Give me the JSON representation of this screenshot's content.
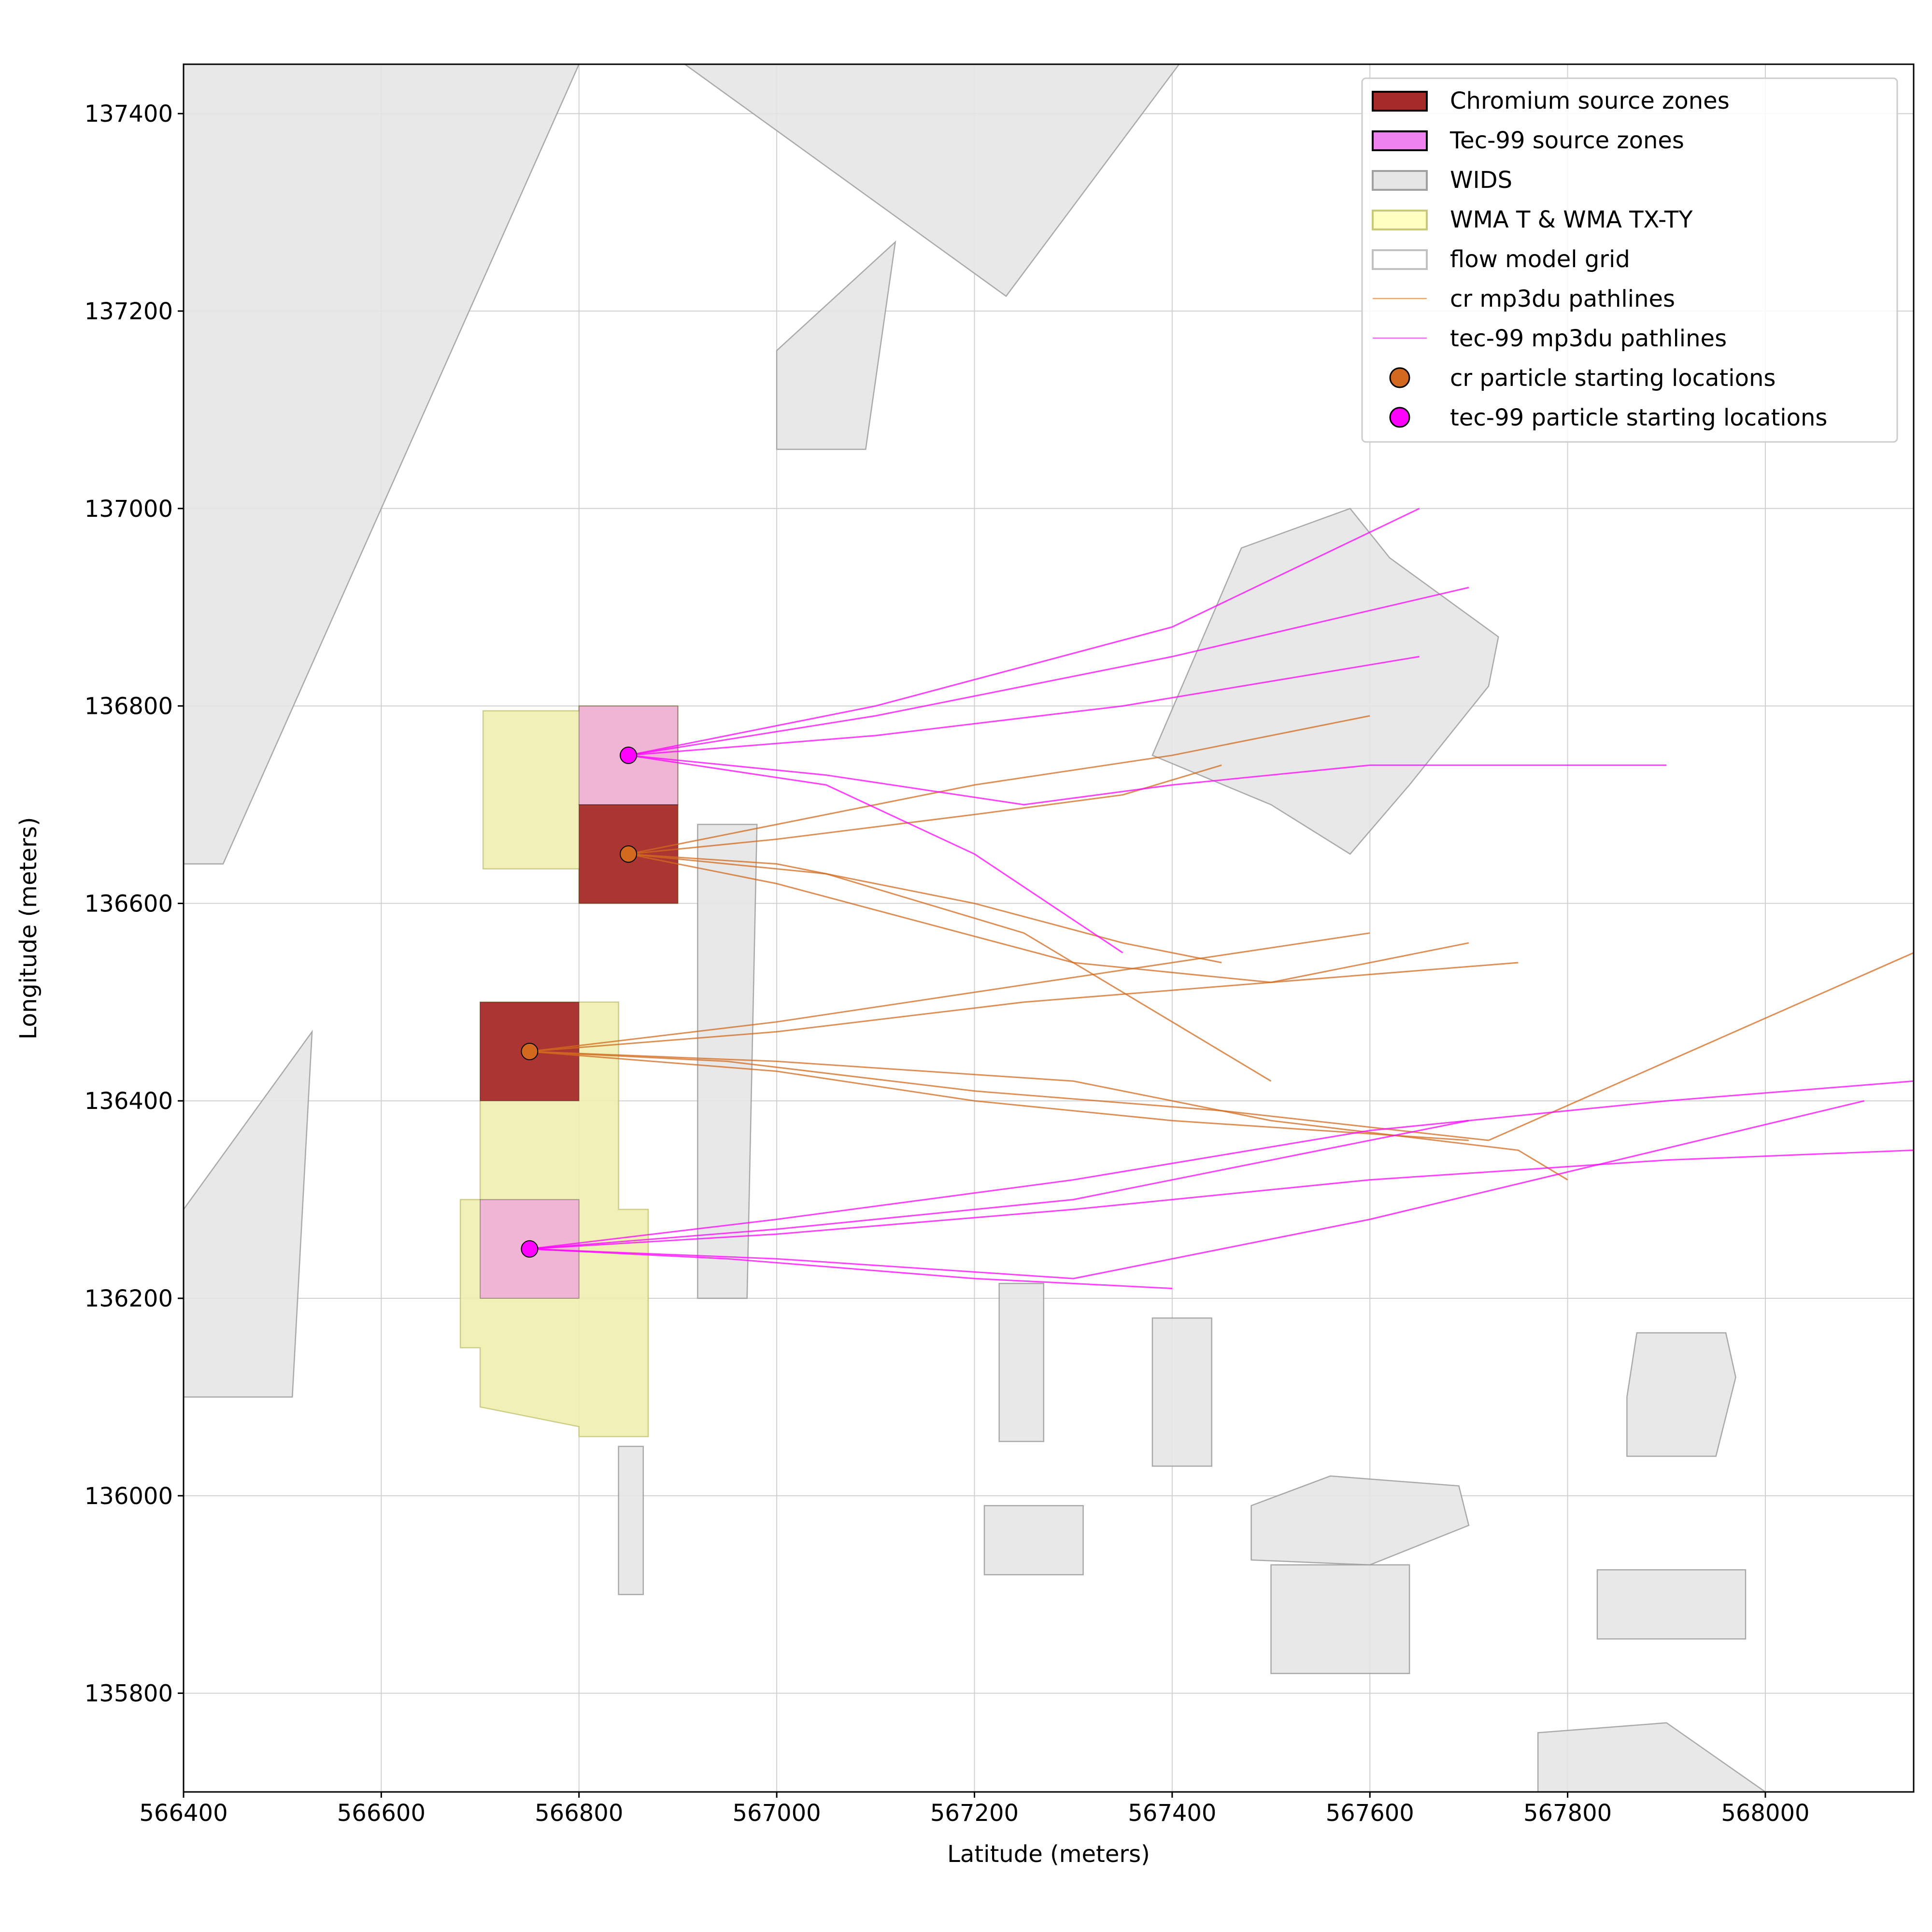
{
  "chart_data": {
    "type": "map",
    "x_label": "Latitude (meters)",
    "y_label": "Longitude (meters)",
    "xlim": [
      566400,
      568150
    ],
    "ylim": [
      135700,
      137450
    ],
    "xticks": [
      566400,
      566600,
      566800,
      567000,
      567200,
      567400,
      567600,
      567800,
      568000
    ],
    "yticks": [
      135800,
      136000,
      136200,
      136400,
      136600,
      136800,
      137000,
      137200,
      137400
    ],
    "grid": true,
    "legend_position": "upper right",
    "features": [
      {
        "name": "WIDS",
        "fill": "#e6e6e6",
        "stroke": "#a0a0a0",
        "polygons": [
          {
            "x": [
              566400,
              566440,
              566800,
              566400
            ],
            "y": [
              136640,
              136640,
              137450,
              137450
            ]
          },
          {
            "x": [
              566907,
              567407,
              567232
            ],
            "y": [
              137450,
              137450,
              137215
            ]
          },
          {
            "x": [
              567380,
              567470,
              567580,
              567620,
              567730,
              567720,
              567640,
              567580,
              567500
            ],
            "y": [
              136750,
              136960,
              137000,
              136950,
              136870,
              136820,
              136720,
              136650,
              136700
            ]
          },
          {
            "x": [
              566400,
              566510,
              566530,
              566400
            ],
            "y": [
              136100,
              136100,
              136470,
              136290
            ]
          },
          {
            "x": [
              566920,
              566970,
              566980,
              566920
            ],
            "y": [
              136200,
              136200,
              136680,
              136680
            ]
          },
          {
            "x": [
              567500,
              567640,
              567640,
              567500
            ],
            "y": [
              135820,
              135820,
              135930,
              135930
            ]
          },
          {
            "x": [
              567380,
              567440,
              567440,
              567380
            ],
            "y": [
              136030,
              136030,
              136180,
              136180
            ]
          },
          {
            "x": [
              567830,
              567980,
              567980,
              567830
            ],
            "y": [
              135855,
              135855,
              135925,
              135925
            ]
          },
          {
            "x": [
              567860,
              567950,
              567970,
              567960,
              567870,
              567860
            ],
            "y": [
              136040,
              136040,
              136120,
              136165,
              136165,
              136100
            ]
          },
          {
            "x": [
              567225,
              567270,
              567270,
              567225
            ],
            "y": [
              136055,
              136055,
              136215,
              136215
            ]
          },
          {
            "x": [
              567210,
              567310,
              567310,
              567210
            ],
            "y": [
              135920,
              135920,
              135990,
              135990
            ]
          },
          {
            "x": [
              567000,
              567120,
              567090,
              567000
            ],
            "y": [
              137160,
              137270,
              137060,
              137060
            ]
          },
          {
            "x": [
              566840,
              566865,
              566865,
              566840
            ],
            "y": [
              135900,
              135900,
              136050,
              136050
            ]
          },
          {
            "x": [
              567480,
              567600,
              567700,
              567690,
              567560,
              567480
            ],
            "y": [
              135935,
              135930,
              135970,
              136010,
              136020,
              135990
            ]
          },
          {
            "x": [
              567770,
              567900,
              568000,
              567900,
              567770
            ],
            "y": [
              135700,
              135700,
              135700,
              135770,
              135760
            ]
          }
        ]
      },
      {
        "name": "WMA T & WMA TX-TY",
        "fill": "#f0f0b0",
        "stroke": "#c8c878",
        "polygons": [
          {
            "x": [
              566703,
              566800,
              566800,
              566900,
              566900,
              566800,
              566800,
              566703
            ],
            "y": [
              136635,
              136635,
              136600,
              136600,
              136800,
              136800,
              136795,
              136795
            ]
          },
          {
            "x": [
              566700,
              566840,
              566840,
              566870,
              566870,
              566800,
              566800,
              566700,
              566700,
              566680,
              566680,
              566700
            ],
            "y": [
              136500,
              136500,
              136290,
              136290,
              136060,
              136060,
              136070,
              136090,
              136150,
              136150,
              136300,
              136300
            ]
          }
        ]
      }
    ],
    "source_zones": [
      {
        "name": "Chromium source zones",
        "color": "#a52a2a",
        "opacity": 0.95,
        "rects": [
          {
            "x": [
              566800,
              566900
            ],
            "y": [
              136600,
              136700
            ]
          },
          {
            "x": [
              566700,
              566800
            ],
            "y": [
              136400,
              136500
            ]
          }
        ]
      },
      {
        "name": "Tec-99 source zones",
        "color": "#ee82ee",
        "opacity": 0.55,
        "rects": [
          {
            "x": [
              566800,
              566900
            ],
            "y": [
              136700,
              136800
            ]
          },
          {
            "x": [
              566700,
              566800
            ],
            "y": [
              136200,
              136300
            ]
          }
        ]
      }
    ],
    "pathlines": [
      {
        "name": "cr mp3du pathlines",
        "color": "#d2691e",
        "lines": [
          {
            "x": [
              566850,
              567000,
              567200,
              567400,
              567600
            ],
            "y": [
              136650,
              136680,
              136720,
              136750,
              136790
            ]
          },
          {
            "x": [
              566850,
              567000,
              567200,
              567350,
              567450
            ],
            "y": [
              136650,
              136665,
              136690,
              136710,
              136740
            ]
          },
          {
            "x": [
              566850,
              567000,
              567200,
              567350,
              567450
            ],
            "y": [
              136650,
              136640,
              136600,
              136560,
              136540
            ]
          },
          {
            "x": [
              566850,
              567000,
              567150,
              567300,
              567500,
              567700
            ],
            "y": [
              136650,
              136620,
              136580,
              136540,
              136520,
              136560
            ]
          },
          {
            "x": [
              566850,
              567050,
              567250,
              567400,
              567500
            ],
            "y": [
              136650,
              136630,
              136570,
              136480,
              136420
            ]
          },
          {
            "x": [
              566750,
              567000,
              567200,
              567400,
              567600
            ],
            "y": [
              136450,
              136480,
              136510,
              136540,
              136570
            ]
          },
          {
            "x": [
              566750,
              567000,
              567250,
              567500,
              567750
            ],
            "y": [
              136450,
              136470,
              136500,
              136520,
              136540
            ]
          },
          {
            "x": [
              566750,
              567000,
              567200,
              567400,
              567700
            ],
            "y": [
              136450,
              136430,
              136400,
              136380,
              136360
            ]
          },
          {
            "x": [
              566750,
              567000,
              567300,
              567500,
              567750,
              567800
            ],
            "y": [
              136450,
              136440,
              136420,
              136380,
              136350,
              136320
            ]
          },
          {
            "x": [
              566750,
              566950,
              567200,
              567450,
              567720,
              568150
            ],
            "y": [
              136450,
              136440,
              136410,
              136390,
              136360,
              136550
            ]
          }
        ]
      },
      {
        "name": "tec-99 mp3du pathlines",
        "color": "#ff00ff",
        "lines": [
          {
            "x": [
              566850,
              567100,
              567400,
              567650
            ],
            "y": [
              136750,
              136800,
              136880,
              137000
            ]
          },
          {
            "x": [
              566850,
              567100,
              567400,
              567700
            ],
            "y": [
              136750,
              136790,
              136850,
              136920
            ]
          },
          {
            "x": [
              566850,
              567100,
              567350,
              567650
            ],
            "y": [
              136750,
              136770,
              136800,
              136850
            ]
          },
          {
            "x": [
              566850,
              567050,
              567250,
              567400,
              567600,
              567900
            ],
            "y": [
              136750,
              136730,
              136700,
              136720,
              136740,
              136740
            ]
          },
          {
            "x": [
              566850,
              567050,
              567200,
              567350
            ],
            "y": [
              136750,
              136720,
              136650,
              136550
            ]
          },
          {
            "x": [
              566750,
              567000,
              567300,
              567600,
              567900,
              568150
            ],
            "y": [
              136250,
              136280,
              136320,
              136370,
              136400,
              136420
            ]
          },
          {
            "x": [
              566750,
              567000,
              567300,
              567600,
              567900,
              568150
            ],
            "y": [
              136250,
              136265,
              136290,
              136320,
              136340,
              136350
            ]
          },
          {
            "x": [
              566750,
              567000,
              567300,
              567600,
              568100
            ],
            "y": [
              136250,
              136240,
              136220,
              136280,
              136400
            ]
          },
          {
            "x": [
              566750,
              566950,
              567200,
              567400
            ],
            "y": [
              136250,
              136240,
              136220,
              136210
            ]
          },
          {
            "x": [
              566750,
              567000,
              567300,
              567500,
              567700
            ],
            "y": [
              136250,
              136270,
              136300,
              136340,
              136380
            ]
          }
        ]
      }
    ],
    "series": [
      {
        "name": "cr particle starting locations",
        "color": "#d2691e",
        "x": [
          566850,
          566750
        ],
        "y": [
          136650,
          136450
        ]
      },
      {
        "name": "tec-99 particle starting locations",
        "color": "#ff00ff",
        "x": [
          566850,
          566750
        ],
        "y": [
          136750,
          136250
        ]
      }
    ],
    "legend": [
      {
        "label": "Chromium source zones",
        "kind": "patch",
        "color": "#a52a2a",
        "edge": "#000000"
      },
      {
        "label": "Tec-99 source zones",
        "kind": "patch",
        "color": "#ee82ee",
        "edge": "#000000"
      },
      {
        "label": "WIDS",
        "kind": "patch",
        "color": "#e6e6e6",
        "edge": "#a0a0a0"
      },
      {
        "label": "WMA T & WMA TX-TY",
        "kind": "patch",
        "color": "#ffffc0",
        "edge": "#c8c878"
      },
      {
        "label": "flow model grid",
        "kind": "patch",
        "color": "#ffffff",
        "edge": "#c0c0c0"
      },
      {
        "label": "cr mp3du pathlines",
        "kind": "line",
        "color": "#f4a460"
      },
      {
        "label": "tec-99 mp3du pathlines",
        "kind": "line",
        "color": "#ff66ff"
      },
      {
        "label": "cr particle starting locations",
        "kind": "marker",
        "color": "#d2691e"
      },
      {
        "label": "tec-99 particle starting locations",
        "kind": "marker",
        "color": "#ff00ff"
      }
    ]
  }
}
